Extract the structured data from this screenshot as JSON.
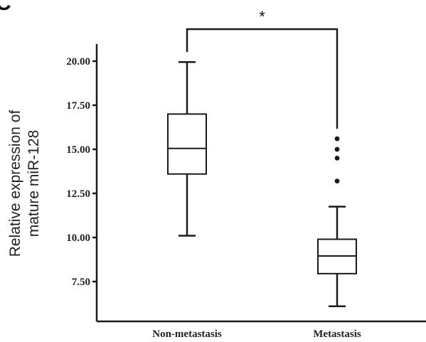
{
  "panel_label": "C",
  "chart_data": {
    "type": "box",
    "title": "",
    "xlabel": "",
    "ylabel_lines": [
      "Relative expression of",
      "mature miR-128"
    ],
    "ylim": [
      6.0,
      20.8
    ],
    "yticks": [
      7.5,
      10.0,
      12.5,
      15.0,
      17.5,
      20.0
    ],
    "ytick_labels": [
      "7.50",
      "10.00",
      "12.50",
      "15.00",
      "17.50",
      "20.00"
    ],
    "categories": [
      "Non-metastasis",
      "Metastasis"
    ],
    "boxes": [
      {
        "category": "Non-metastasis",
        "min": 10.1,
        "q1": 13.6,
        "median": 15.05,
        "q3": 17.0,
        "max": 19.95,
        "outliers": []
      },
      {
        "category": "Metastasis",
        "min": 6.1,
        "q1": 7.95,
        "median": 8.95,
        "q3": 9.9,
        "max": 11.75,
        "outliers": [
          13.2,
          14.5,
          15.0,
          15.6
        ]
      }
    ],
    "significance": {
      "between": [
        "Non-metastasis",
        "Metastasis"
      ],
      "label": "*"
    },
    "grid": false,
    "legend": "none"
  }
}
